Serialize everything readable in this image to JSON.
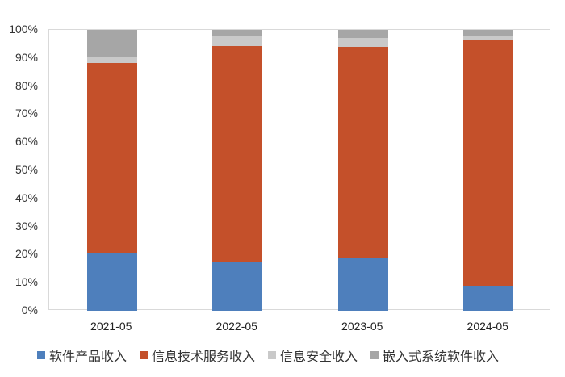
{
  "chart_data": {
    "type": "bar",
    "stacked": true,
    "percent_stacked": true,
    "title": "",
    "xlabel": "",
    "ylabel": "",
    "ylim": [
      0,
      100
    ],
    "y_ticks": [
      "0%",
      "10%",
      "20%",
      "30%",
      "40%",
      "50%",
      "60%",
      "70%",
      "80%",
      "90%",
      "100%"
    ],
    "categories": [
      "2021-05",
      "2022-05",
      "2023-05",
      "2024-05"
    ],
    "series": [
      {
        "name": "软件产品收入",
        "color": "#4E7FBC",
        "values": [
          20.7,
          17.4,
          18.8,
          9.0
        ]
      },
      {
        "name": "信息技术服务收入",
        "color": "#C4502A",
        "values": [
          67.4,
          76.9,
          75.1,
          87.5
        ]
      },
      {
        "name": "信息安全收入",
        "color": "#C9C9C9",
        "values": [
          2.5,
          3.4,
          3.3,
          1.4
        ]
      },
      {
        "name": "嵌入式系统软件收入",
        "color": "#A6A6A6",
        "values": [
          9.4,
          2.3,
          2.8,
          2.1
        ]
      }
    ],
    "grid": false,
    "legend_position": "bottom"
  }
}
